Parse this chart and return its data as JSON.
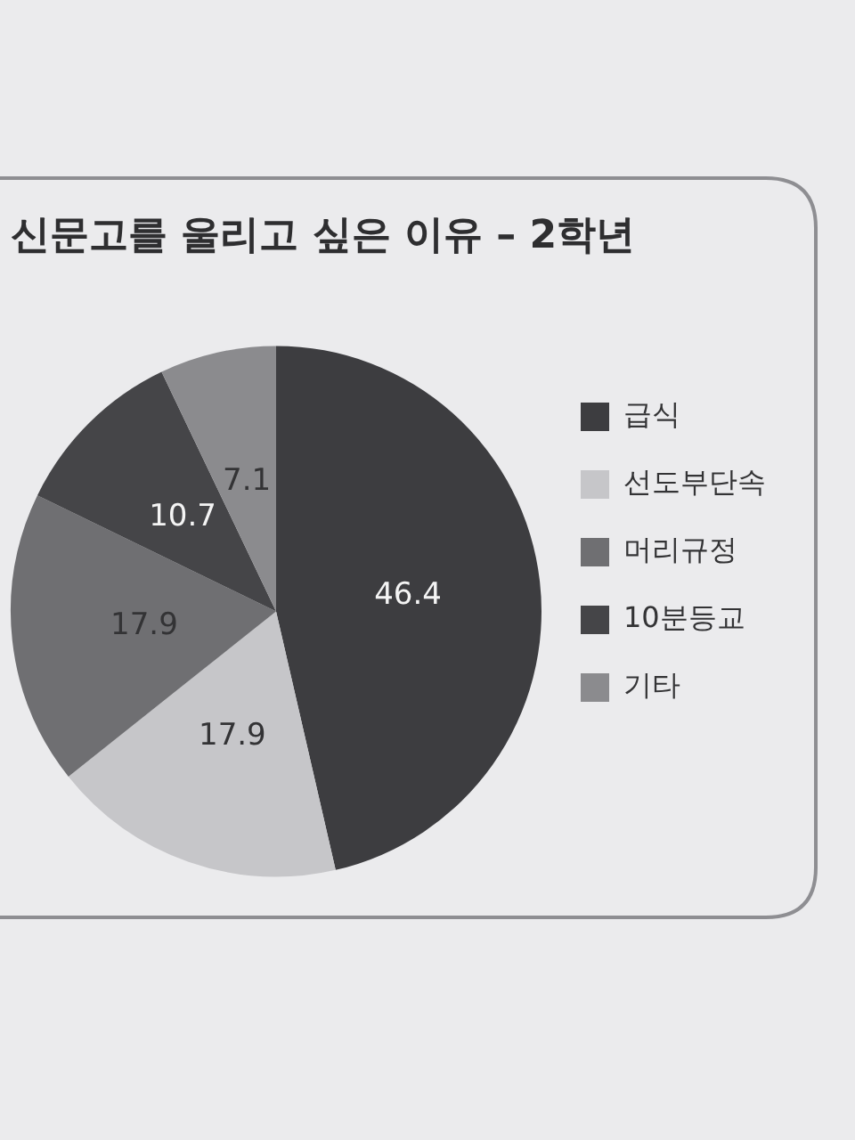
{
  "chart_data": {
    "type": "pie",
    "title": "신문고를 울리고 싶은 이유 – 2학년",
    "categories": [
      "급식",
      "선도부단속",
      "머리규정",
      "10분등교",
      "기타"
    ],
    "values": [
      46.4,
      17.9,
      17.9,
      10.7,
      7.1
    ],
    "colors": [
      "#3d3d40",
      "#c6c6c9",
      "#6f6f72",
      "#454548",
      "#8b8b8e"
    ],
    "data_labels": true,
    "legend": "right"
  }
}
